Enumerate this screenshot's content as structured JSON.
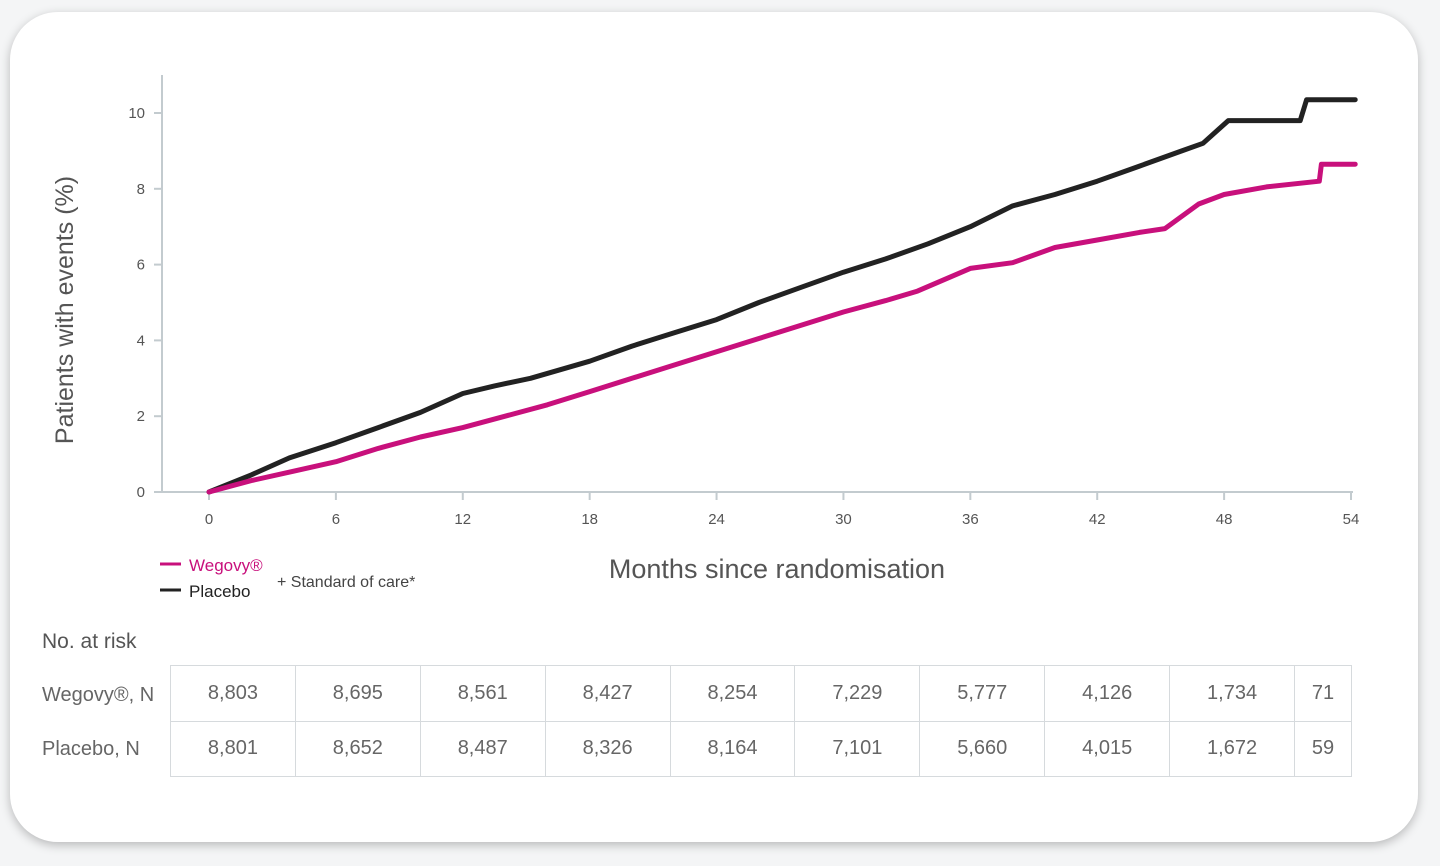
{
  "chart_data": {
    "type": "line",
    "xlabel": "Months since randomisation",
    "ylabel": "Patients with events (%)",
    "xlim": [
      0,
      54
    ],
    "ylim": [
      0,
      10
    ],
    "x_ticks": [
      0,
      6,
      12,
      18,
      24,
      30,
      36,
      42,
      48,
      54
    ],
    "y_ticks": [
      0,
      2,
      4,
      6,
      8,
      10
    ],
    "grid": false,
    "legend": {
      "position": "bottom-left",
      "suffix": "+ Standard of care*"
    },
    "series": [
      {
        "name": "Wegovy®",
        "color": "#c8107c",
        "points": [
          [
            0,
            0
          ],
          [
            2,
            0.3
          ],
          [
            4,
            0.55
          ],
          [
            6,
            0.8
          ],
          [
            8,
            1.15
          ],
          [
            10,
            1.45
          ],
          [
            12,
            1.7
          ],
          [
            14,
            2.0
          ],
          [
            16,
            2.3
          ],
          [
            18,
            2.65
          ],
          [
            20,
            3.0
          ],
          [
            22,
            3.35
          ],
          [
            24,
            3.7
          ],
          [
            26,
            4.05
          ],
          [
            28,
            4.4
          ],
          [
            30,
            4.75
          ],
          [
            32,
            5.05
          ],
          [
            33.5,
            5.3
          ],
          [
            36,
            5.9
          ],
          [
            38,
            6.05
          ],
          [
            40,
            6.45
          ],
          [
            42,
            6.65
          ],
          [
            44,
            6.85
          ],
          [
            45.2,
            6.95
          ],
          [
            46.8,
            7.6
          ],
          [
            48,
            7.85
          ],
          [
            50,
            8.05
          ],
          [
            52.5,
            8.2
          ],
          [
            52.6,
            8.65
          ],
          [
            54.2,
            8.65
          ]
        ]
      },
      {
        "name": "Placebo",
        "color": "#222222",
        "points": [
          [
            0,
            0
          ],
          [
            2,
            0.45
          ],
          [
            3.8,
            0.9
          ],
          [
            6,
            1.3
          ],
          [
            8,
            1.7
          ],
          [
            10,
            2.1
          ],
          [
            12,
            2.6
          ],
          [
            13.5,
            2.8
          ],
          [
            15.2,
            3.0
          ],
          [
            18,
            3.45
          ],
          [
            20,
            3.85
          ],
          [
            22,
            4.2
          ],
          [
            24,
            4.55
          ],
          [
            26,
            5.0
          ],
          [
            28,
            5.4
          ],
          [
            30,
            5.8
          ],
          [
            32,
            6.15
          ],
          [
            34,
            6.55
          ],
          [
            36,
            7.0
          ],
          [
            38,
            7.55
          ],
          [
            40,
            7.85
          ],
          [
            42,
            8.2
          ],
          [
            44,
            8.6
          ],
          [
            46,
            9.0
          ],
          [
            47,
            9.2
          ],
          [
            48.2,
            9.8
          ],
          [
            50,
            9.8
          ],
          [
            51.6,
            9.8
          ],
          [
            51.9,
            10.35
          ],
          [
            54.2,
            10.35
          ]
        ]
      }
    ]
  },
  "risk_table": {
    "title": "No. at risk",
    "rows": [
      {
        "label": "Wegovy®, N",
        "values": [
          "8,803",
          "8,695",
          "8,561",
          "8,427",
          "8,254",
          "7,229",
          "5,777",
          "4,126",
          "1,734",
          "71"
        ]
      },
      {
        "label": "Placebo, N",
        "values": [
          "8,801",
          "8,652",
          "8,487",
          "8,326",
          "8,164",
          "7,101",
          "5,660",
          "4,015",
          "1,672",
          "59"
        ]
      }
    ]
  }
}
